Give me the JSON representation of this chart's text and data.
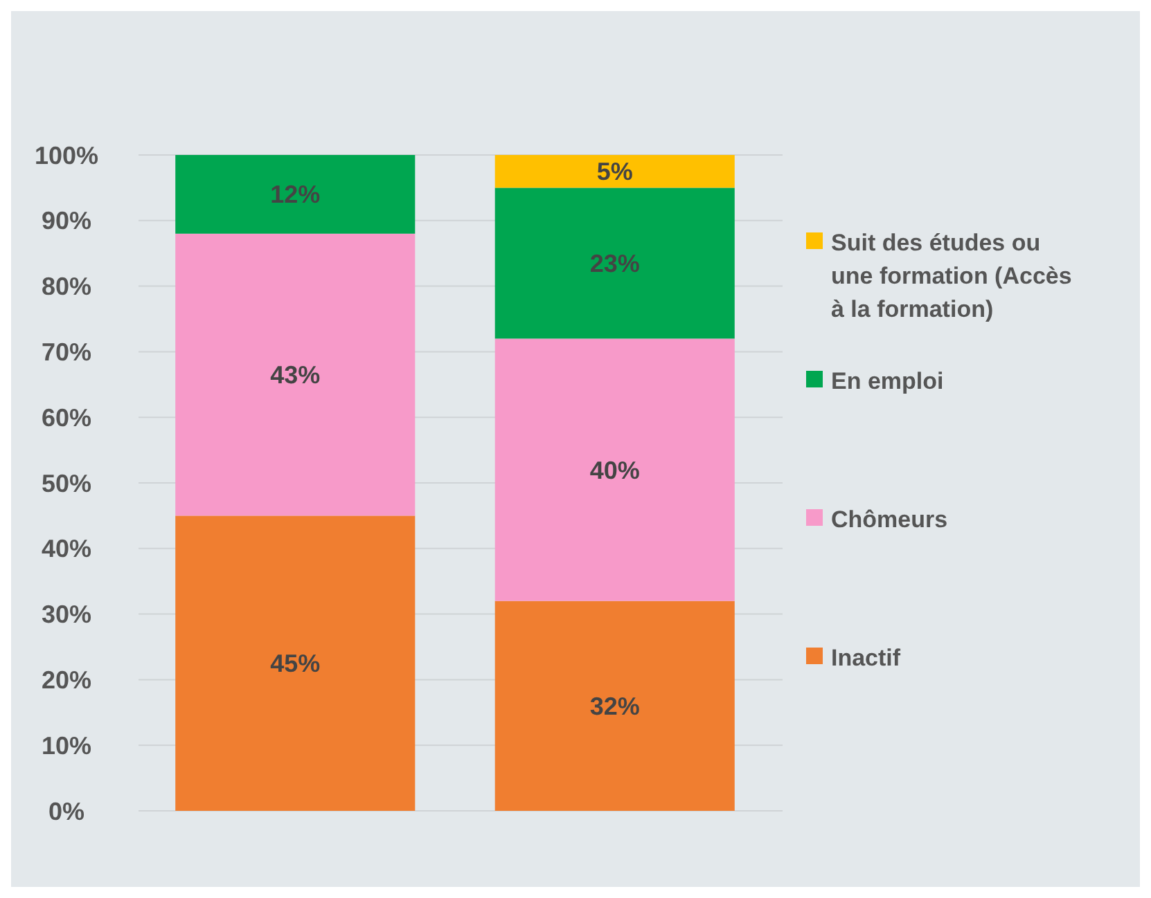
{
  "chart_data": {
    "type": "bar",
    "stacked": true,
    "categories": [
      null,
      null
    ],
    "series": [
      {
        "name": "Inactif",
        "color": "#f07e30",
        "values": [
          45,
          32
        ],
        "value_labels": [
          "45%",
          "32%"
        ]
      },
      {
        "name": "Chômeurs",
        "color": "#f79ac9",
        "values": [
          43,
          40
        ],
        "value_labels": [
          "43%",
          "40%"
        ]
      },
      {
        "name": "En emploi",
        "color": "#00a650",
        "values": [
          12,
          23
        ],
        "value_labels": [
          "12%",
          "23%"
        ]
      },
      {
        "name": "Suit des études ou une formation (Accès à la formation)",
        "color": "#ffc000",
        "values": [
          null,
          5
        ],
        "value_labels": [
          null,
          "5%"
        ]
      }
    ],
    "ylim": [
      0,
      100
    ],
    "yticks": [
      {
        "value": 0,
        "label": "0%"
      },
      {
        "value": 10,
        "label": "10%"
      },
      {
        "value": 20,
        "label": "20%"
      },
      {
        "value": 30,
        "label": "30%"
      },
      {
        "value": 40,
        "label": "40%"
      },
      {
        "value": 50,
        "label": "50%"
      },
      {
        "value": 60,
        "label": "60%"
      },
      {
        "value": 70,
        "label": "70%"
      },
      {
        "value": 80,
        "label": "80%"
      },
      {
        "value": 90,
        "label": "90%"
      },
      {
        "value": 100,
        "label": "100%"
      }
    ],
    "grid": "y",
    "legend": "right"
  }
}
